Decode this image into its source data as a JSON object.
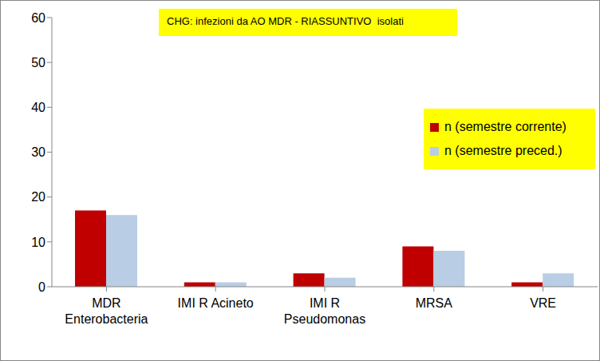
{
  "chart_data": {
    "type": "bar",
    "title": "CHG: infezioni da AO MDR - RIASSUNTIVO  isolati",
    "categories": [
      "MDR Enterobacteria",
      "IMI R Acineto",
      "IMI R Pseudomonas",
      "MRSA",
      "VRE"
    ],
    "series": [
      {
        "name": "n (semestre corrente)",
        "color": "#C00000",
        "values": [
          17,
          1,
          3,
          9,
          1
        ]
      },
      {
        "name": "n (semestre preced.)",
        "color": "#B9CDE5",
        "values": [
          16,
          1,
          2,
          8,
          3
        ]
      }
    ],
    "ylim": [
      0,
      60
    ],
    "yticks": [
      0,
      10,
      20,
      30,
      40,
      50,
      60
    ],
    "grid": false,
    "legend": "right"
  }
}
